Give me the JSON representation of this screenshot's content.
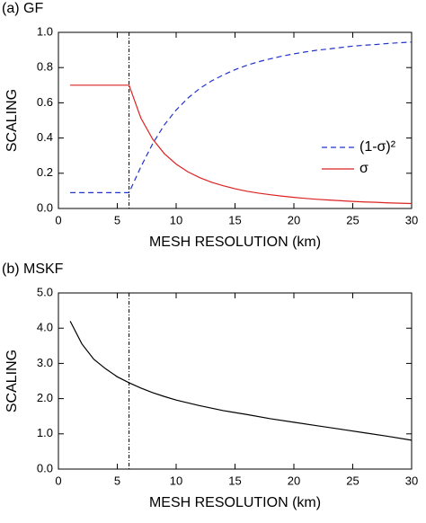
{
  "chart_data": [
    {
      "type": "line",
      "title": "(a) GF",
      "x_label": "MESH RESOLUTION (km)",
      "y_label": "SCALING",
      "x": [
        1,
        2,
        3,
        4,
        5,
        6,
        7,
        8,
        9,
        10,
        11,
        12,
        13,
        14,
        15,
        16,
        17,
        18,
        19,
        20,
        21,
        22,
        23,
        24,
        25,
        26,
        27,
        28,
        29,
        30
      ],
      "series": [
        {
          "name": "(1-σ)²",
          "color": "#2233cc",
          "dash": true,
          "values": [
            0.09,
            0.09,
            0.09,
            0.09,
            0.09,
            0.09,
            0.236,
            0.367,
            0.475,
            0.559,
            0.627,
            0.681,
            0.724,
            0.758,
            0.788,
            0.813,
            0.833,
            0.85,
            0.865,
            0.878,
            0.889,
            0.899,
            0.906,
            0.914,
            0.922,
            0.927,
            0.931,
            0.937,
            0.941,
            0.945
          ]
        },
        {
          "name": "σ",
          "color": "#dd2222",
          "dash": false,
          "values": [
            0.7,
            0.7,
            0.7,
            0.7,
            0.7,
            0.7,
            0.514,
            0.394,
            0.311,
            0.252,
            0.208,
            0.175,
            0.149,
            0.129,
            0.112,
            0.098,
            0.087,
            0.078,
            0.07,
            0.063,
            0.057,
            0.052,
            0.048,
            0.044,
            0.04,
            0.037,
            0.035,
            0.032,
            0.03,
            0.028
          ]
        }
      ],
      "vline": 6,
      "xlim": [
        0,
        30
      ],
      "xticks": [
        0,
        5,
        10,
        15,
        20,
        25,
        30
      ],
      "ylim": [
        0,
        1
      ],
      "yticks": [
        {
          "value": 0,
          "label": "0.0"
        },
        0.2,
        0.4,
        0.6,
        0.8,
        {
          "value": 1,
          "label": "1.0"
        }
      ],
      "legend": "center right"
    },
    {
      "type": "line",
      "title": "(b) MSKF",
      "x_label": "MESH RESOLUTION (km)",
      "y_label": "SCALING",
      "x": [
        1,
        2,
        3,
        4,
        5,
        6,
        7,
        8,
        9,
        10,
        12,
        14,
        16,
        18,
        20,
        22,
        24,
        26,
        28,
        30
      ],
      "series": [
        {
          "color": "#000000",
          "dash": false,
          "values": [
            4.2,
            3.55,
            3.12,
            2.85,
            2.62,
            2.45,
            2.3,
            2.17,
            2.06,
            1.96,
            1.8,
            1.66,
            1.55,
            1.43,
            1.33,
            1.23,
            1.13,
            1.03,
            0.93,
            0.82
          ]
        }
      ],
      "vline": 6,
      "xlim": [
        0,
        30
      ],
      "xticks": [
        0,
        5,
        10,
        15,
        20,
        25,
        30
      ],
      "ylim": [
        0,
        5
      ],
      "yticks": [
        {
          "value": 0,
          "label": "0.0"
        },
        {
          "value": 1,
          "label": "1.0"
        },
        {
          "value": 2,
          "label": "2.0"
        },
        {
          "value": 3,
          "label": "3.0"
        },
        {
          "value": 4,
          "label": "4.0"
        },
        {
          "value": 5,
          "label": "5.0"
        }
      ]
    }
  ]
}
